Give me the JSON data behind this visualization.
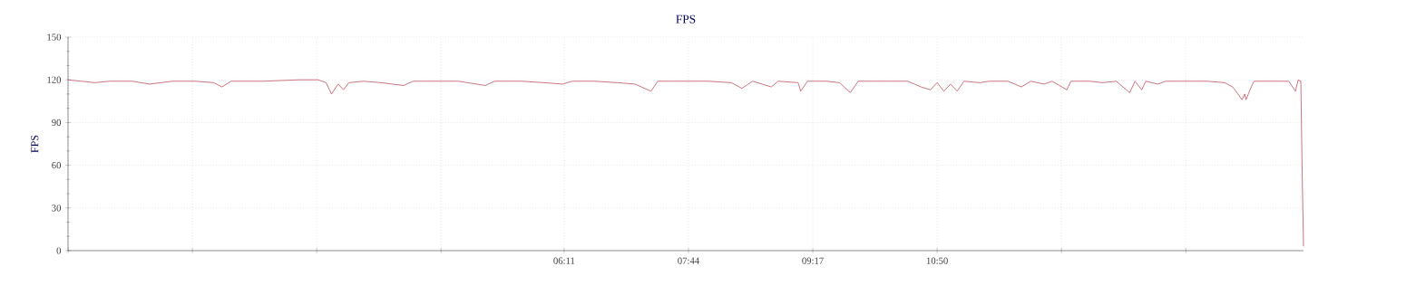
{
  "chart_data": {
    "type": "line",
    "title": "FPS",
    "ylabel": "FPS",
    "x": [
      0,
      10,
      20,
      31,
      48,
      61,
      78,
      95,
      109,
      115,
      122,
      132,
      146,
      173,
      187,
      193,
      197,
      202,
      206,
      210,
      221,
      234,
      251,
      258,
      275,
      292,
      312,
      319,
      339,
      356,
      370,
      377,
      394,
      411,
      424,
      436,
      441,
      458,
      479,
      496,
      504,
      512,
      526,
      531,
      546,
      548,
      553,
      567,
      577,
      585,
      591,
      611,
      628,
      638,
      645,
      650,
      655,
      660,
      665,
      670,
      682,
      689,
      703,
      713,
      720,
      730,
      736,
      747,
      750,
      764,
      774,
      784,
      794,
      798,
      803,
      806,
      815,
      821,
      832,
      852,
      865,
      871,
      875,
      878,
      880,
      881,
      884,
      887,
      899,
      913,
      918,
      920,
      922,
      923,
      924
    ],
    "series": [
      {
        "color": "#c0505f",
        "values": [
          120,
          119,
          118,
          119,
          119,
          117,
          119,
          119,
          118,
          115,
          119,
          119,
          119,
          120,
          120,
          118,
          110,
          117,
          113,
          118,
          119,
          118,
          116,
          119,
          119,
          119,
          116,
          119,
          119,
          118,
          117,
          119,
          119,
          118,
          117,
          112,
          119,
          119,
          119,
          118,
          114,
          119,
          115,
          119,
          118,
          112,
          119,
          119,
          118,
          111,
          119,
          119,
          119,
          115,
          113,
          118,
          112,
          117,
          112,
          119,
          118,
          119,
          119,
          115,
          119,
          117,
          119,
          113,
          119,
          119,
          118,
          119,
          111,
          119,
          113,
          119,
          117,
          119,
          119,
          119,
          118,
          115,
          110,
          106,
          110,
          106,
          113,
          119,
          119,
          119,
          112,
          120,
          119,
          55,
          3
        ]
      }
    ],
    "xlim": [
      0,
      924
    ],
    "ylim": [
      0,
      150
    ],
    "xticks": [
      {
        "value": 0,
        "label": null
      },
      {
        "value": 93,
        "label": null
      },
      {
        "value": 186,
        "label": null
      },
      {
        "value": 279,
        "label": null
      },
      {
        "value": 371,
        "label": "06:11"
      },
      {
        "value": 464,
        "label": "07:44"
      },
      {
        "value": 557,
        "label": "09:17"
      },
      {
        "value": 650,
        "label": "10:50"
      },
      {
        "value": 743,
        "label": null
      },
      {
        "value": 836,
        "label": null
      }
    ],
    "yticks": [
      0,
      30,
      60,
      90,
      120,
      150
    ],
    "grid": true,
    "marker": "none",
    "line_style": "solid"
  }
}
